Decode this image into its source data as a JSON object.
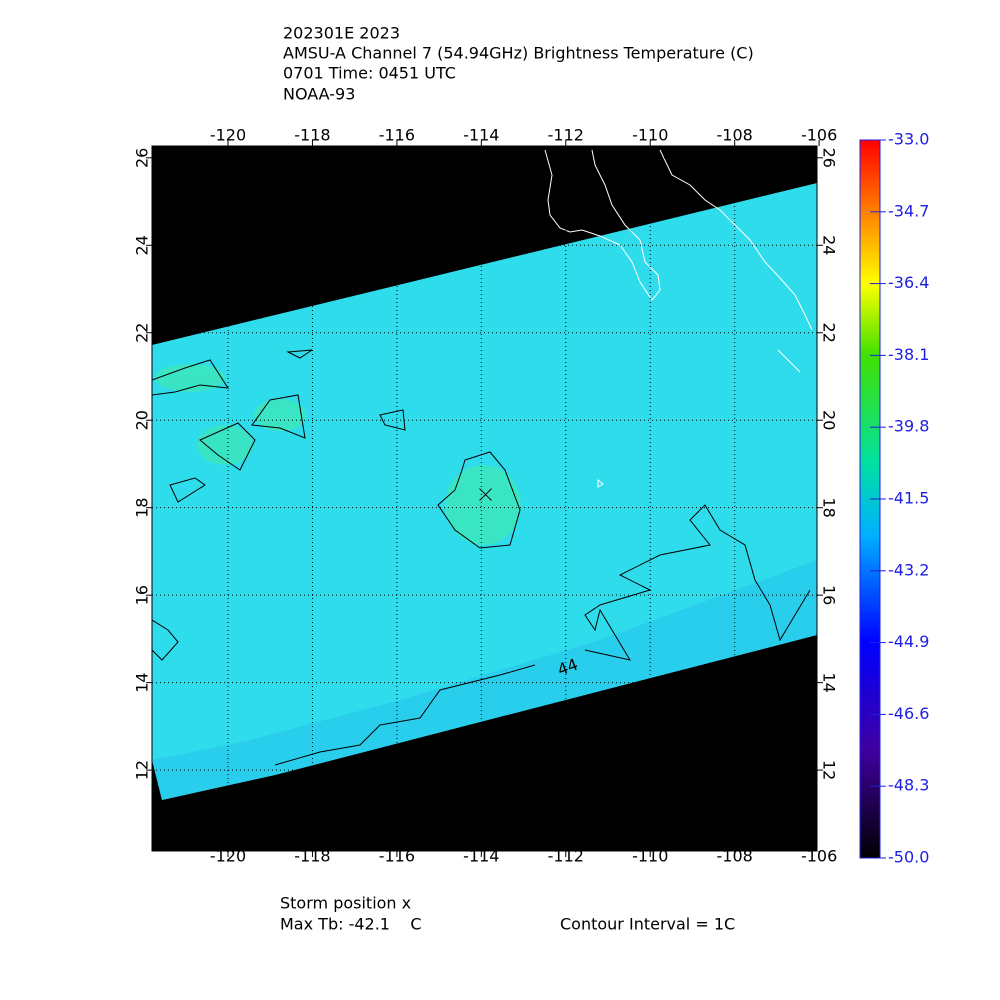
{
  "header": {
    "lines": [
      "202301E 2023",
      "AMSU-A Channel 7 (54.94GHz) Brightness Temperature (C)",
      "0701 Time: 0451 UTC",
      "NOAA-93"
    ]
  },
  "map": {
    "xlim": [
      -121.8,
      -106.05
    ],
    "ylim": [
      10.15,
      26.27
    ],
    "xticks": [
      -120,
      -118,
      -116,
      -114,
      -112,
      -110,
      -108,
      -106
    ],
    "yticks": [
      12,
      14,
      16,
      18,
      20,
      22,
      24,
      26
    ],
    "grid": true,
    "contour_label": "44",
    "storm": {
      "lon": -113.9,
      "lat": 18.3
    }
  },
  "colorbar": {
    "lim": [
      -50,
      -33
    ],
    "ticks": [
      {
        "value": -33,
        "label": "-33.0"
      },
      {
        "value": -34.7,
        "label": "-34.7"
      },
      {
        "value": -36.4,
        "label": "-36.4"
      },
      {
        "value": -38.1,
        "label": "-38.1"
      },
      {
        "value": -39.8,
        "label": "-39.8"
      },
      {
        "value": -41.5,
        "label": "-41.5"
      },
      {
        "value": -43.2,
        "label": "-43.2"
      },
      {
        "value": -44.9,
        "label": "-44.9"
      },
      {
        "value": -46.6,
        "label": "-46.6"
      },
      {
        "value": -48.3,
        "label": "-48.3"
      },
      {
        "value": -50,
        "label": "-50.0"
      }
    ]
  },
  "footer": {
    "storm_position": "Storm position x",
    "max_tb": "Max Tb: -42.1    C",
    "contour_interval": "Contour Interval = 1C"
  }
}
